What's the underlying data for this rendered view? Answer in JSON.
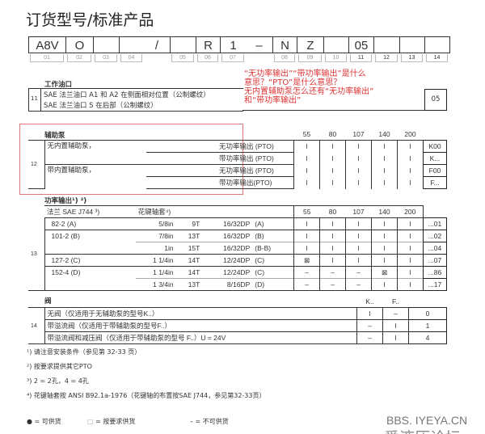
{
  "title": "订货型号/标准产品",
  "code_boxes": [
    "A8V",
    "O",
    "",
    "",
    "/",
    "",
    "R",
    "1",
    "–",
    "N",
    "Z",
    "",
    "05",
    "",
    "",
    ""
  ],
  "position_numbers": [
    "01",
    "02",
    "03",
    "04",
    "",
    "05",
    "06",
    "07",
    "",
    "08",
    "09",
    "10",
    "11",
    "12",
    "13",
    "14"
  ],
  "annotation": [
    "“无功率输出”“带功率输出”是什么",
    "意思？“PTO”是什么意思？",
    "无内置辅助泵怎么还有“无功率输出”",
    "和“带功率输出”"
  ],
  "s11": {
    "label": "工作油口",
    "num": "11",
    "rows": [
      "SAE 法兰油口 A1 和 A2 在侧面相对位置（公制螺纹）",
      "SAE 法兰油口 S 在后部（公制螺纹）"
    ],
    "code": "05"
  },
  "s12": {
    "label": "辅助泵",
    "num": "12",
    "sizes": [
      "55",
      "80",
      "107",
      "140",
      "200"
    ],
    "rows": [
      {
        "a": "无内置辅助泵，",
        "b": "无功率输出 (PTO)",
        "v": [
          "l",
          "l",
          "l",
          "l",
          "l"
        ],
        "code": "K00"
      },
      {
        "a": "",
        "b": "带功率输出 (PTO)",
        "v": [
          "l",
          "l",
          "l",
          "l",
          "l"
        ],
        "code": "K..."
      },
      {
        "a": "带内置辅助泵，",
        "b": "无功率输出 (PTO)",
        "v": [
          "l",
          "l",
          "l",
          "l",
          "l"
        ],
        "code": "F00"
      },
      {
        "a": "",
        "b": "带功率输出(PTO)",
        "v": [
          "l",
          "l",
          "l",
          "l",
          "l"
        ],
        "code": "F..."
      }
    ]
  },
  "s13": {
    "label": "功率输出¹) ²)",
    "num": "13",
    "h1": "法兰 SAE J744 ³)",
    "h2": "花键轴套⁴)",
    "sizes": [
      "55",
      "80",
      "107",
      "140",
      "200"
    ],
    "rows": [
      {
        "f": "82-2 (A)",
        "d": "5/8in",
        "t": "9T",
        "p": "16/32DP",
        "s": "(A)",
        "v": [
          "l",
          "l",
          "l",
          "l",
          "l"
        ],
        "code": "...01"
      },
      {
        "f": "101-2 (B)",
        "d": "7/8in",
        "t": "13T",
        "p": "16/32DP",
        "s": "(B)",
        "v": [
          "l",
          "l",
          "l",
          "l",
          "l"
        ],
        "code": "...02"
      },
      {
        "f": "",
        "d": "1in",
        "t": "15T",
        "p": "16/32DP",
        "s": "(B-B)",
        "v": [
          "l",
          "l",
          "l",
          "l",
          "l"
        ],
        "code": "...04"
      },
      {
        "f": "127-2 (C)",
        "d": "1 1/4in",
        "t": "14T",
        "p": "12/24DP",
        "s": "(C)",
        "v": [
          "⊠",
          "l",
          "l",
          "l",
          "l"
        ],
        "code": "...07"
      },
      {
        "f": "152-4 (D)",
        "d": "1 1/4in",
        "t": "14T",
        "p": "12/24DP",
        "s": "(C)",
        "v": [
          "–",
          "–",
          "–",
          "⊠",
          "l"
        ],
        "code": "...86"
      },
      {
        "f": "",
        "d": "1 3/4in",
        "t": "13T",
        "p": "8/16DP",
        "s": "(D)",
        "v": [
          "–",
          "–",
          "–",
          "l",
          "l"
        ],
        "code": "...17"
      }
    ]
  },
  "s14": {
    "label": "阀",
    "num": "14",
    "cols": [
      "K..",
      "F.."
    ],
    "rows": [
      {
        "t": "无阀（仅适用于无辅助泵的型号K..）",
        "v": [
          "l",
          "–"
        ],
        "code": "0"
      },
      {
        "t": "带溢流阀（仅适用于带辅助泵的型号F..）",
        "v": [
          "–",
          "l"
        ],
        "code": "1"
      },
      {
        "t": "带溢流阀和减压阀（仅适用于带辅助泵的型号 F..）U = 24V",
        "v": [
          "–",
          "l"
        ],
        "code": "4"
      }
    ]
  },
  "footnotes": [
    "¹) 请注意安装条件（参见第 32-33 页）",
    "²) 按要求提供其它PTO",
    "³) 2 = 2孔，4 = 4孔",
    "⁴) 花键轴套按 ANSI B92.1a-1976（花键轴的布置按SAE J744，参见第32-33页）"
  ],
  "legend": [
    {
      "sym": "●",
      "t": "= 可供货"
    },
    {
      "sym": "□",
      "t": "= 按要求供货"
    },
    {
      "sym": "–",
      "t": "= 不可供货"
    }
  ],
  "watermark": [
    "BBS. IYEYA.CN",
    "爱液压论坛"
  ]
}
